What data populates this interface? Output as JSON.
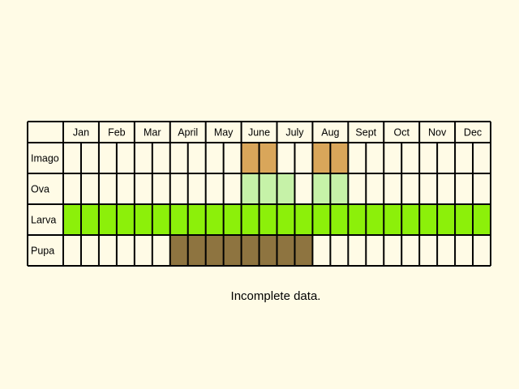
{
  "chart_data": {
    "type": "heatmap",
    "title": "",
    "columns_per_month": 2,
    "months": [
      "Jan",
      "Feb",
      "Mar",
      "April",
      "May",
      "June",
      "July",
      "Aug",
      "Sept",
      "Oct",
      "Nov",
      "Dec"
    ],
    "stages": [
      {
        "name": "Imago",
        "color": "#d9a65a",
        "active": [
          11,
          12,
          15,
          16
        ]
      },
      {
        "name": "Ova",
        "color": "#c6f2a8",
        "active": [
          11,
          12,
          13,
          15,
          16
        ]
      },
      {
        "name": "Larva",
        "color": "#8cf00a",
        "active": [
          1,
          2,
          3,
          4,
          5,
          6,
          7,
          8,
          9,
          10,
          11,
          12,
          13,
          14,
          15,
          16,
          17,
          18,
          19,
          20,
          21,
          22,
          23,
          24
        ]
      },
      {
        "name": "Pupa",
        "color": "#8e7440",
        "active": [
          7,
          8,
          9,
          10,
          11,
          12,
          13,
          14
        ]
      }
    ]
  },
  "caption": "Incomplete data."
}
